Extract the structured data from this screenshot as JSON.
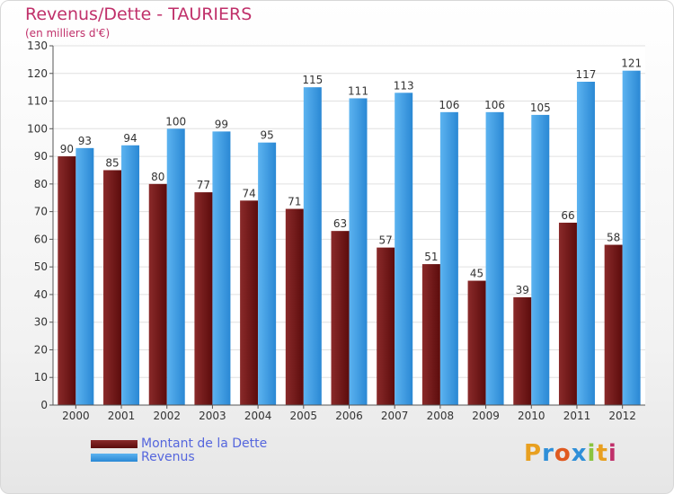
{
  "chart_data": {
    "type": "bar",
    "title": "Revenus/Dette - TAURIERS",
    "subtitle": "(en milliers d'€)",
    "categories": [
      "2000",
      "2001",
      "2002",
      "2003",
      "2004",
      "2005",
      "2006",
      "2007",
      "2008",
      "2009",
      "2010",
      "2011",
      "2012"
    ],
    "series": [
      {
        "name": "Montant de la Dette",
        "values": [
          90,
          85,
          80,
          77,
          74,
          71,
          63,
          57,
          51,
          45,
          39,
          66,
          58
        ],
        "color": "#7a1a1a"
      },
      {
        "name": "Revenus",
        "values": [
          93,
          94,
          100,
          99,
          95,
          115,
          111,
          113,
          106,
          106,
          105,
          117,
          121
        ],
        "color": "#3d9ee6"
      }
    ],
    "ylim": [
      0,
      130
    ],
    "yticks": [
      0,
      10,
      20,
      30,
      40,
      50,
      60,
      70,
      80,
      90,
      100,
      110,
      120,
      130
    ],
    "grid": true,
    "legend_position": "bottom-left"
  },
  "logo": {
    "letters": [
      "P",
      "r",
      "o",
      "x",
      "i",
      "t",
      "i"
    ],
    "colors": [
      "#e8a020",
      "#2f8fd8",
      "#e05a20",
      "#2f8fd8",
      "#8ac43f",
      "#e8a020",
      "#c0306a"
    ]
  }
}
